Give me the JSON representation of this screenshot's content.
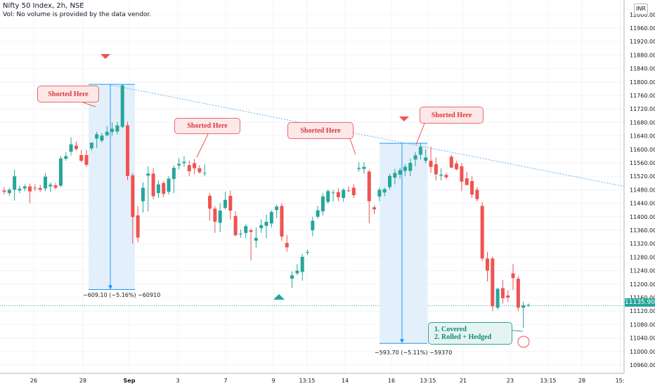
{
  "header": {
    "title": "Nifty 50 Index, 2h, NSE",
    "volume_note": "Vol: No volume is provided by the data vendor.",
    "currency": "INR"
  },
  "colors": {
    "up": "#26a69a",
    "down": "#ef5350",
    "range_fill": "#e3f0fc",
    "trendline": "#64b5f6",
    "grid": "#f0f3fa"
  },
  "annotations": {
    "shorted_1": "Shorted Here",
    "shorted_2": "Shorted Here",
    "shorted_3": "Shorted Here",
    "shorted_4": "Shorted Here",
    "covered_1": "1. Covered",
    "covered_2": "2. Rolled + Hedged",
    "measure_1": "−609.10 (−5.16%) −60910",
    "measure_2": "−593.70 (−5.11%) −59370"
  },
  "last_price": "11135.90",
  "chart_data": {
    "type": "candlestick",
    "title": "Nifty 50 Index, 2h, NSE",
    "y_ticks": [
      10960,
      11000,
      11040,
      11080,
      11120,
      11160,
      11200,
      11240,
      11280,
      11320,
      11360,
      11400,
      11440,
      11480,
      11520,
      11560,
      11600,
      11640,
      11680,
      11720,
      11760,
      11800,
      11840,
      11880,
      11920,
      11960,
      12000
    ],
    "y_range": [
      10940,
      12000
    ],
    "x_tick_labels": [
      "26",
      "28",
      "Sep",
      "3",
      "7",
      "9",
      "13:15",
      "14",
      "16",
      "13:15",
      "21",
      "23",
      "13:15",
      "28",
      "15:"
    ],
    "last_price": 11135.9,
    "candles": [
      {
        "o": 11478,
        "h": 11488,
        "l": 11466,
        "c": 11474
      },
      {
        "o": 11470,
        "h": 11485,
        "l": 11462,
        "c": 11480
      },
      {
        "o": 11480,
        "h": 11540,
        "l": 11448,
        "c": 11520
      },
      {
        "o": 11478,
        "h": 11492,
        "l": 11470,
        "c": 11483
      },
      {
        "o": 11484,
        "h": 11496,
        "l": 11476,
        "c": 11490
      },
      {
        "o": 11490,
        "h": 11498,
        "l": 11440,
        "c": 11475
      },
      {
        "o": 11486,
        "h": 11496,
        "l": 11476,
        "c": 11484
      },
      {
        "o": 11485,
        "h": 11495,
        "l": 11474,
        "c": 11480
      },
      {
        "o": 11484,
        "h": 11530,
        "l": 11476,
        "c": 11519
      },
      {
        "o": 11490,
        "h": 11502,
        "l": 11474,
        "c": 11495
      },
      {
        "o": 11493,
        "h": 11500,
        "l": 11482,
        "c": 11486
      },
      {
        "o": 11492,
        "h": 11580,
        "l": 11488,
        "c": 11573
      },
      {
        "o": 11572,
        "h": 11592,
        "l": 11566,
        "c": 11580
      },
      {
        "o": 11593,
        "h": 11636,
        "l": 11582,
        "c": 11615
      },
      {
        "o": 11611,
        "h": 11624,
        "l": 11596,
        "c": 11601
      },
      {
        "o": 11583,
        "h": 11598,
        "l": 11562,
        "c": 11566
      },
      {
        "o": 11583,
        "h": 11598,
        "l": 11548,
        "c": 11554
      },
      {
        "o": 11603,
        "h": 11618,
        "l": 11596,
        "c": 11620
      },
      {
        "o": 11632,
        "h": 11652,
        "l": 11604,
        "c": 11645
      },
      {
        "o": 11626,
        "h": 11648,
        "l": 11620,
        "c": 11641
      },
      {
        "o": 11642,
        "h": 11669,
        "l": 11638,
        "c": 11652
      },
      {
        "o": 11652,
        "h": 11680,
        "l": 11640,
        "c": 11661
      },
      {
        "o": 11653,
        "h": 11682,
        "l": 11644,
        "c": 11671
      },
      {
        "o": 11667,
        "h": 11793,
        "l": 11662,
        "c": 11790
      },
      {
        "o": 11671,
        "h": 11682,
        "l": 11508,
        "c": 11521
      },
      {
        "o": 11523,
        "h": 11530,
        "l": 11320,
        "c": 11399
      },
      {
        "o": 11404,
        "h": 11432,
        "l": 11324,
        "c": 11338
      },
      {
        "o": 11446,
        "h": 11502,
        "l": 11412,
        "c": 11486
      },
      {
        "o": 11522,
        "h": 11550,
        "l": 11416,
        "c": 11528
      },
      {
        "o": 11528,
        "h": 11544,
        "l": 11452,
        "c": 11461
      },
      {
        "o": 11470,
        "h": 11508,
        "l": 11456,
        "c": 11496
      },
      {
        "o": 11500,
        "h": 11506,
        "l": 11458,
        "c": 11468
      },
      {
        "o": 11474,
        "h": 11520,
        "l": 11466,
        "c": 11513
      },
      {
        "o": 11512,
        "h": 11552,
        "l": 11470,
        "c": 11545
      },
      {
        "o": 11552,
        "h": 11574,
        "l": 11540,
        "c": 11557
      },
      {
        "o": 11559,
        "h": 11580,
        "l": 11548,
        "c": 11563
      },
      {
        "o": 11553,
        "h": 11566,
        "l": 11520,
        "c": 11535
      },
      {
        "o": 11559,
        "h": 11571,
        "l": 11526,
        "c": 11544
      },
      {
        "o": 11544,
        "h": 11553,
        "l": 11528,
        "c": 11532
      },
      {
        "o": 11528,
        "h": 11556,
        "l": 11520,
        "c": 11530
      },
      {
        "o": 11462,
        "h": 11470,
        "l": 11388,
        "c": 11424
      },
      {
        "o": 11424,
        "h": 11432,
        "l": 11352,
        "c": 11385
      },
      {
        "o": 11382,
        "h": 11440,
        "l": 11354,
        "c": 11418
      },
      {
        "o": 11426,
        "h": 11474,
        "l": 11422,
        "c": 11450
      },
      {
        "o": 11462,
        "h": 11478,
        "l": 11392,
        "c": 11418
      },
      {
        "o": 11402,
        "h": 11416,
        "l": 11342,
        "c": 11345
      },
      {
        "o": 11348,
        "h": 11362,
        "l": 11338,
        "c": 11350
      },
      {
        "o": 11352,
        "h": 11378,
        "l": 11336,
        "c": 11372
      },
      {
        "o": 11360,
        "h": 11364,
        "l": 11270,
        "c": 11355
      },
      {
        "o": 11329,
        "h": 11368,
        "l": 11308,
        "c": 11337
      },
      {
        "o": 11366,
        "h": 11392,
        "l": 11352,
        "c": 11375
      },
      {
        "o": 11373,
        "h": 11406,
        "l": 11336,
        "c": 11385
      },
      {
        "o": 11380,
        "h": 11420,
        "l": 11368,
        "c": 11414
      },
      {
        "o": 11420,
        "h": 11436,
        "l": 11396,
        "c": 11430
      },
      {
        "o": 11432,
        "h": 11440,
        "l": 11328,
        "c": 11341
      },
      {
        "o": 11322,
        "h": 11346,
        "l": 11296,
        "c": 11309
      },
      {
        "o": 11216,
        "h": 11238,
        "l": 11188,
        "c": 11226
      },
      {
        "o": 11232,
        "h": 11260,
        "l": 11226,
        "c": 11240
      },
      {
        "o": 11236,
        "h": 11290,
        "l": 11210,
        "c": 11281
      },
      {
        "o": 11293,
        "h": 11302,
        "l": 11286,
        "c": 11295
      },
      {
        "o": 11360,
        "h": 11400,
        "l": 11342,
        "c": 11388
      },
      {
        "o": 11400,
        "h": 11432,
        "l": 11394,
        "c": 11419
      },
      {
        "o": 11416,
        "h": 11470,
        "l": 11404,
        "c": 11460
      },
      {
        "o": 11444,
        "h": 11482,
        "l": 11438,
        "c": 11476
      },
      {
        "o": 11470,
        "h": 11480,
        "l": 11445,
        "c": 11472
      },
      {
        "o": 11473,
        "h": 11484,
        "l": 11446,
        "c": 11458
      },
      {
        "o": 11456,
        "h": 11484,
        "l": 11444,
        "c": 11480
      },
      {
        "o": 11478,
        "h": 11490,
        "l": 11474,
        "c": 11476
      },
      {
        "o": 11486,
        "h": 11496,
        "l": 11456,
        "c": 11464
      },
      {
        "o": 11542,
        "h": 11562,
        "l": 11534,
        "c": 11545
      },
      {
        "o": 11542,
        "h": 11562,
        "l": 11528,
        "c": 11548
      },
      {
        "o": 11534,
        "h": 11540,
        "l": 11380,
        "c": 11446
      },
      {
        "o": 11428,
        "h": 11434,
        "l": 11408,
        "c": 11422
      },
      {
        "o": 11460,
        "h": 11486,
        "l": 11446,
        "c": 11480
      },
      {
        "o": 11472,
        "h": 11486,
        "l": 11460,
        "c": 11482
      },
      {
        "o": 11488,
        "h": 11528,
        "l": 11480,
        "c": 11521
      },
      {
        "o": 11516,
        "h": 11542,
        "l": 11496,
        "c": 11530
      },
      {
        "o": 11525,
        "h": 11546,
        "l": 11512,
        "c": 11538
      },
      {
        "o": 11536,
        "h": 11556,
        "l": 11520,
        "c": 11548
      },
      {
        "o": 11536,
        "h": 11572,
        "l": 11520,
        "c": 11560
      },
      {
        "o": 11570,
        "h": 11592,
        "l": 11550,
        "c": 11582
      },
      {
        "o": 11584,
        "h": 11618,
        "l": 11570,
        "c": 11607
      },
      {
        "o": 11566,
        "h": 11600,
        "l": 11558,
        "c": 11576
      },
      {
        "o": 11566,
        "h": 11608,
        "l": 11530,
        "c": 11548
      },
      {
        "o": 11556,
        "h": 11576,
        "l": 11508,
        "c": 11526
      },
      {
        "o": 11522,
        "h": 11544,
        "l": 11508,
        "c": 11525
      },
      {
        "o": 11524,
        "h": 11530,
        "l": 11512,
        "c": 11517
      },
      {
        "o": 11578,
        "h": 11584,
        "l": 11544,
        "c": 11546
      },
      {
        "o": 11558,
        "h": 11566,
        "l": 11538,
        "c": 11541
      },
      {
        "o": 11550,
        "h": 11560,
        "l": 11476,
        "c": 11504
      },
      {
        "o": 11514,
        "h": 11534,
        "l": 11494,
        "c": 11494
      },
      {
        "o": 11506,
        "h": 11520,
        "l": 11456,
        "c": 11466
      },
      {
        "o": 11480,
        "h": 11488,
        "l": 11446,
        "c": 11452
      },
      {
        "o": 11432,
        "h": 11444,
        "l": 11268,
        "c": 11276
      },
      {
        "o": 11276,
        "h": 11296,
        "l": 11208,
        "c": 11240
      },
      {
        "o": 11276,
        "h": 11282,
        "l": 11120,
        "c": 11134
      },
      {
        "o": 11130,
        "h": 11190,
        "l": 11124,
        "c": 11186
      },
      {
        "o": 11188,
        "h": 11212,
        "l": 11142,
        "c": 11158
      },
      {
        "o": 11166,
        "h": 11182,
        "l": 11146,
        "c": 11160
      },
      {
        "o": 11232,
        "h": 11260,
        "l": 11182,
        "c": 11218
      },
      {
        "o": 11216,
        "h": 11224,
        "l": 11120,
        "c": 11130
      },
      {
        "o": 11130,
        "h": 11148,
        "l": 11070,
        "c": 11137
      },
      {
        "o": 11136,
        "h": 11142,
        "l": 11132,
        "c": 11138
      }
    ],
    "range_measurements": [
      {
        "label": "−609.10 (−5.16%) −60910",
        "from": 11793,
        "to": 11184
      },
      {
        "label": "−593.70 (−5.11%) −59370",
        "from": 11618,
        "to": 11024
      }
    ]
  }
}
